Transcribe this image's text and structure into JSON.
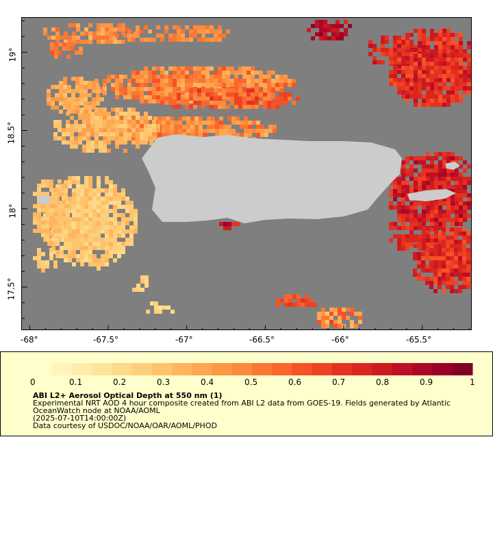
{
  "map": {
    "ocean_color": "#7f7f7f",
    "land_color": "#cccccc",
    "lon_ticks": [
      "-68°",
      "-67.5°",
      "-67°",
      "-66.5°",
      "-66°",
      "-65.5°"
    ],
    "lat_ticks": [
      "19°",
      "18.5°",
      "18°",
      "17.5°"
    ],
    "lon_range": [
      -68.05,
      -65.18
    ],
    "lat_range": [
      17.22,
      19.22
    ]
  },
  "colorbar": {
    "tick_labels": [
      "0",
      "0.1",
      "0.2",
      "0.3",
      "0.4",
      "0.5",
      "0.6",
      "0.7",
      "0.8",
      "0.9",
      "1"
    ],
    "range": [
      0,
      1
    ],
    "colors": [
      "#ffffcc",
      "#fff5bb",
      "#ffebaa",
      "#fee39a",
      "#fed98a",
      "#fecf7a",
      "#fec46c",
      "#feb55e",
      "#fea651",
      "#fd9746",
      "#fd893c",
      "#fc7733",
      "#fb652c",
      "#f65227",
      "#ef4123",
      "#e53220",
      "#db251f",
      "#cd1a21",
      "#bd1026",
      "#ac0626",
      "#9a0026",
      "#800026"
    ]
  },
  "legend": {
    "title": "ABI L2+ Aerosol Optical Depth at 550 nm (1)",
    "lines": [
      "Experimental NRT AOD 4 hour composite created from ABI L2 data from GOES-19. Fields generated by Atlantic",
      "OceanWatch node at NOAA/AOML",
      "(2025-07-10T14:00:00Z)",
      "Data courtesy of USDOC/NOAA/OAR/AOML/PHOD"
    ]
  }
}
